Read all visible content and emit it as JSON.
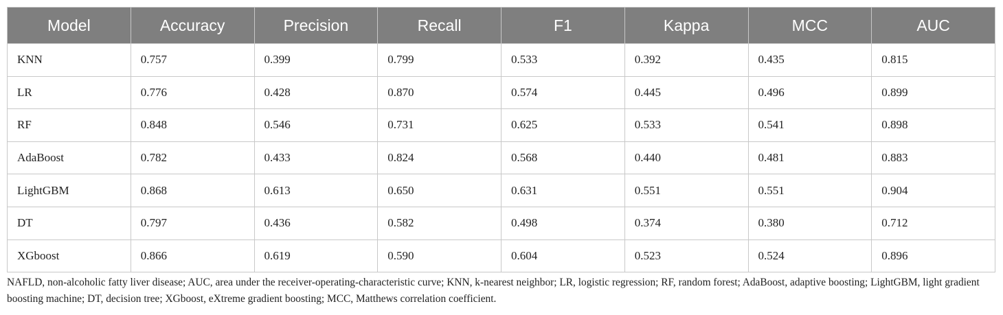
{
  "table": {
    "header": [
      "Model",
      "Accuracy",
      "Precision",
      "Recall",
      "F1",
      "Kappa",
      "MCC",
      "AUC"
    ],
    "rows": [
      [
        "KNN",
        "0.757",
        "0.399",
        "0.799",
        "0.533",
        "0.392",
        "0.435",
        "0.815"
      ],
      [
        "LR",
        "0.776",
        "0.428",
        "0.870",
        "0.574",
        "0.445",
        "0.496",
        "0.899"
      ],
      [
        "RF",
        "0.848",
        "0.546",
        "0.731",
        "0.625",
        "0.533",
        "0.541",
        "0.898"
      ],
      [
        "AdaBoost",
        "0.782",
        "0.433",
        "0.824",
        "0.568",
        "0.440",
        "0.481",
        "0.883"
      ],
      [
        "LightGBM",
        "0.868",
        "0.613",
        "0.650",
        "0.631",
        "0.551",
        "0.551",
        "0.904"
      ],
      [
        "DT",
        "0.797",
        "0.436",
        "0.582",
        "0.498",
        "0.374",
        "0.380",
        "0.712"
      ],
      [
        "XGboost",
        "0.866",
        "0.619",
        "0.590",
        "0.604",
        "0.523",
        "0.524",
        "0.896"
      ]
    ]
  },
  "footnote": "NAFLD, non-alcoholic fatty liver disease; AUC, area under the receiver-operating-characteristic curve; KNN, k-nearest neighbor; LR, logistic regression; RF, random forest; AdaBoost, adaptive boosting; LightGBM, light gradient boosting machine; DT, decision tree; XGboost, eXtreme gradient boosting; MCC, Matthews correlation coefficient."
}
